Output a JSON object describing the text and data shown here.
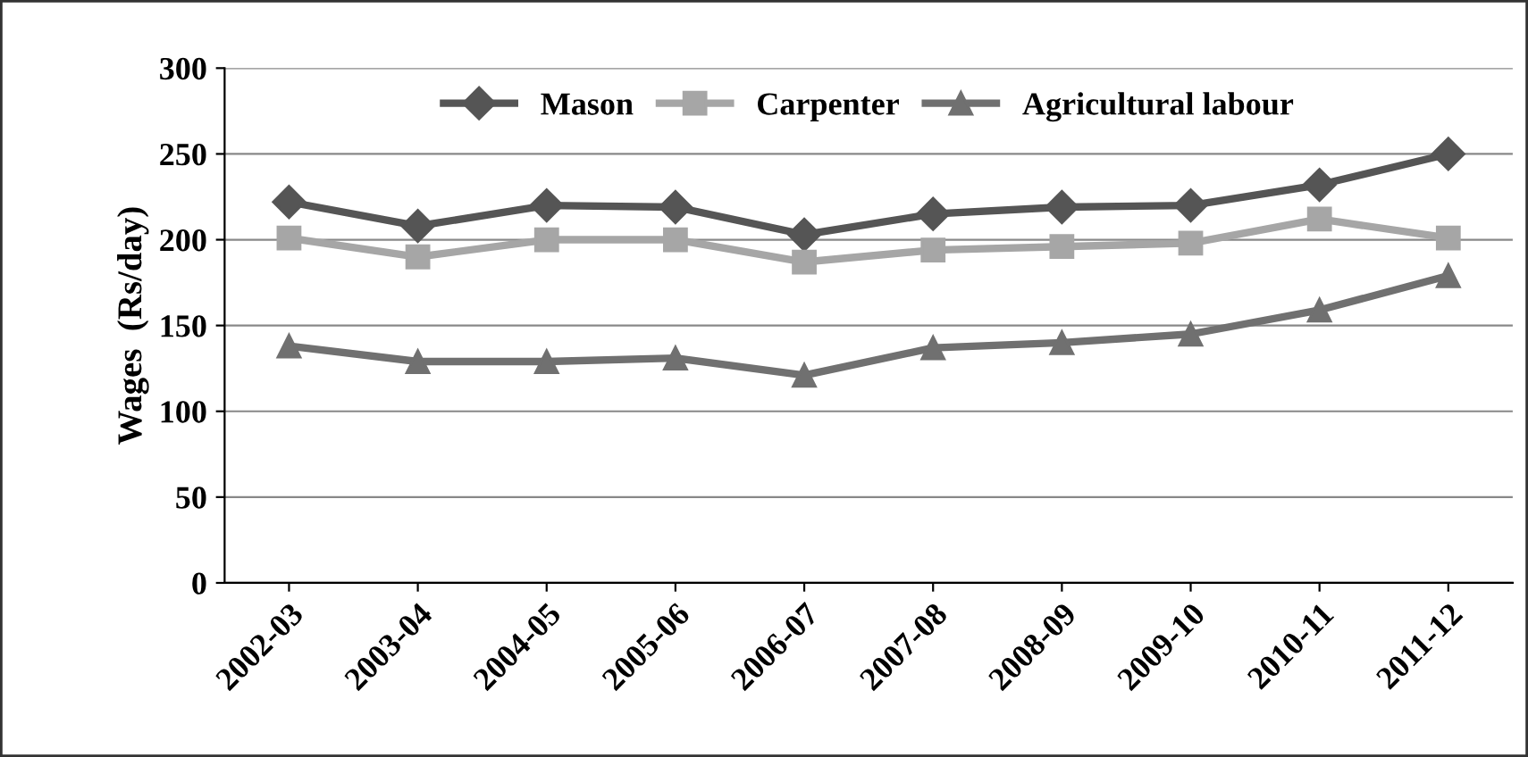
{
  "chart_data": {
    "type": "line",
    "ylabel": "Wages  (Rs/day)",
    "categories": [
      "2002-03",
      "2003-04",
      "2004-05",
      "2005-06",
      "2006-07",
      "2007-08",
      "2008-09",
      "2009-10",
      "2010-11",
      "2011-12"
    ],
    "series": [
      {
        "name": "Mason",
        "color": "#555555",
        "marker": "diamond",
        "values": [
          222,
          208,
          220,
          219,
          203,
          215,
          219,
          220,
          232,
          250
        ]
      },
      {
        "name": "Carpenter",
        "color": "#a6a6a6",
        "marker": "square",
        "values": [
          201,
          190,
          200,
          200,
          187,
          194,
          196,
          198,
          212,
          201
        ]
      },
      {
        "name": "Agricultural labour",
        "color": "#707070",
        "marker": "triangle",
        "values": [
          138,
          129,
          129,
          131,
          121,
          137,
          140,
          145,
          159,
          179
        ]
      }
    ],
    "ylim": [
      0,
      300
    ],
    "yticks": [
      0,
      50,
      100,
      150,
      200,
      250,
      300
    ],
    "grid": "y",
    "legend": "top",
    "line_style": "solid"
  }
}
